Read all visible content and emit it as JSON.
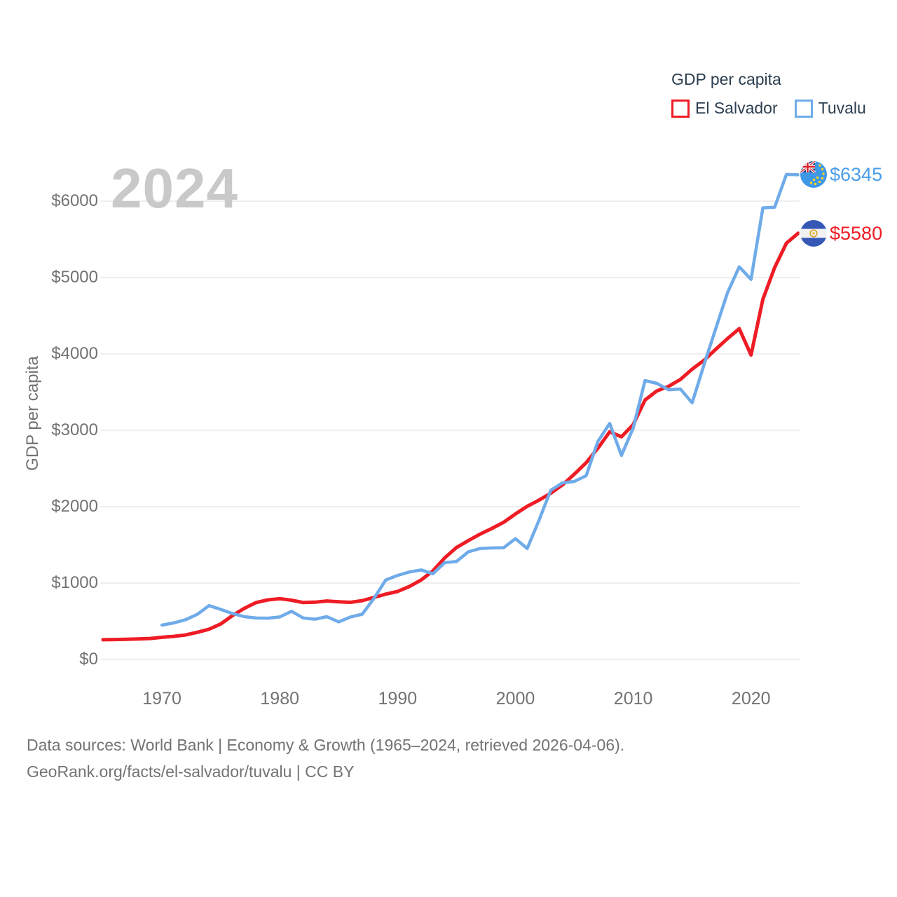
{
  "legend": {
    "title": "GDP per capita",
    "entries": [
      {
        "label": "El Salvador",
        "color": "#ee1c24"
      },
      {
        "label": "Tuvalu",
        "color": "#6fabe9"
      }
    ]
  },
  "watermark": "2024",
  "y_axis": {
    "title": "GDP per capita",
    "tick_labels": [
      "$0",
      "$1000",
      "$2000",
      "$3000",
      "$4000",
      "$5000",
      "$6000"
    ]
  },
  "x_axis": {
    "tick_labels": [
      "1970",
      "1980",
      "1990",
      "2000",
      "2010",
      "2020"
    ]
  },
  "end_labels": [
    {
      "series": "Tuvalu",
      "label": "$6345",
      "value": 6345,
      "color": "#4a9ee8",
      "icon": "tuvalu-flag-icon"
    },
    {
      "series": "El Salvador",
      "label": "$5580",
      "value": 5580,
      "color": "#ee1c24",
      "icon": "el-salvador-flag-icon"
    }
  ],
  "footer": {
    "line1": "Data sources: World Bank | Economy & Growth (1965–2024, retrieved 2026-04-06).",
    "line2": "GeoRank.org/facts/el-salvador/tuvalu | CC BY"
  },
  "colors": {
    "grid": "#e8e8e8",
    "axis_text": "#737373",
    "legend_text": "#2d3f50",
    "watermark": "#c9c9c9"
  },
  "chart_data": {
    "type": "line",
    "title": "GDP per capita",
    "ylabel": "GDP per capita",
    "xlim": [
      1965,
      2024
    ],
    "ylim": [
      0,
      6500
    ],
    "yticks": [
      0,
      1000,
      2000,
      3000,
      4000,
      5000,
      6000
    ],
    "xticks": [
      1970,
      1980,
      1990,
      2000,
      2010,
      2020
    ],
    "grid": "horizontal",
    "legend_position": "top-right",
    "series": [
      {
        "name": "El Salvador",
        "color": "#ee1c24",
        "end_label": "$5580",
        "x": [
          1965,
          1966,
          1967,
          1968,
          1969,
          1970,
          1971,
          1972,
          1973,
          1974,
          1975,
          1976,
          1977,
          1978,
          1979,
          1980,
          1981,
          1982,
          1983,
          1984,
          1985,
          1986,
          1987,
          1988,
          1989,
          1990,
          1991,
          1992,
          1993,
          1994,
          1995,
          1996,
          1997,
          1998,
          1999,
          2000,
          2001,
          2002,
          2003,
          2004,
          2005,
          2006,
          2007,
          2008,
          2009,
          2010,
          2011,
          2012,
          2013,
          2014,
          2015,
          2016,
          2017,
          2018,
          2019,
          2020,
          2021,
          2022,
          2023,
          2024
        ],
        "y": [
          258,
          261,
          264,
          268,
          274,
          290,
          302,
          320,
          355,
          395,
          465,
          575,
          670,
          745,
          780,
          795,
          775,
          745,
          750,
          765,
          755,
          748,
          770,
          812,
          855,
          890,
          955,
          1040,
          1160,
          1330,
          1465,
          1555,
          1640,
          1715,
          1795,
          1905,
          2005,
          2085,
          2175,
          2285,
          2425,
          2575,
          2765,
          2980,
          2915,
          3075,
          3395,
          3515,
          3575,
          3665,
          3800,
          3915,
          4060,
          4200,
          4330,
          3985,
          4715,
          5130,
          5450,
          5580
        ]
      },
      {
        "name": "Tuvalu",
        "color": "#6fabe9",
        "end_label": "$6345",
        "x": [
          1970,
          1971,
          1972,
          1973,
          1974,
          1975,
          1976,
          1977,
          1978,
          1979,
          1980,
          1981,
          1982,
          1983,
          1984,
          1985,
          1986,
          1987,
          1988,
          1989,
          1990,
          1991,
          1992,
          1993,
          1994,
          1995,
          1996,
          1997,
          1998,
          1999,
          2000,
          2001,
          2002,
          2003,
          2004,
          2005,
          2006,
          2007,
          2008,
          2009,
          2010,
          2011,
          2012,
          2013,
          2014,
          2015,
          2016,
          2017,
          2018,
          2019,
          2020,
          2021,
          2022,
          2023,
          2024
        ],
        "y": [
          450,
          478,
          520,
          590,
          705,
          655,
          600,
          560,
          542,
          540,
          556,
          630,
          542,
          527,
          560,
          492,
          556,
          592,
          800,
          1040,
          1100,
          1145,
          1172,
          1122,
          1268,
          1282,
          1408,
          1452,
          1460,
          1462,
          1582,
          1452,
          1820,
          2215,
          2312,
          2330,
          2405,
          2855,
          3090,
          2672,
          3030,
          3650,
          3615,
          3530,
          3540,
          3360,
          3855,
          4330,
          4800,
          5140,
          4975,
          5912,
          5920,
          6350,
          6345
        ]
      }
    ]
  }
}
